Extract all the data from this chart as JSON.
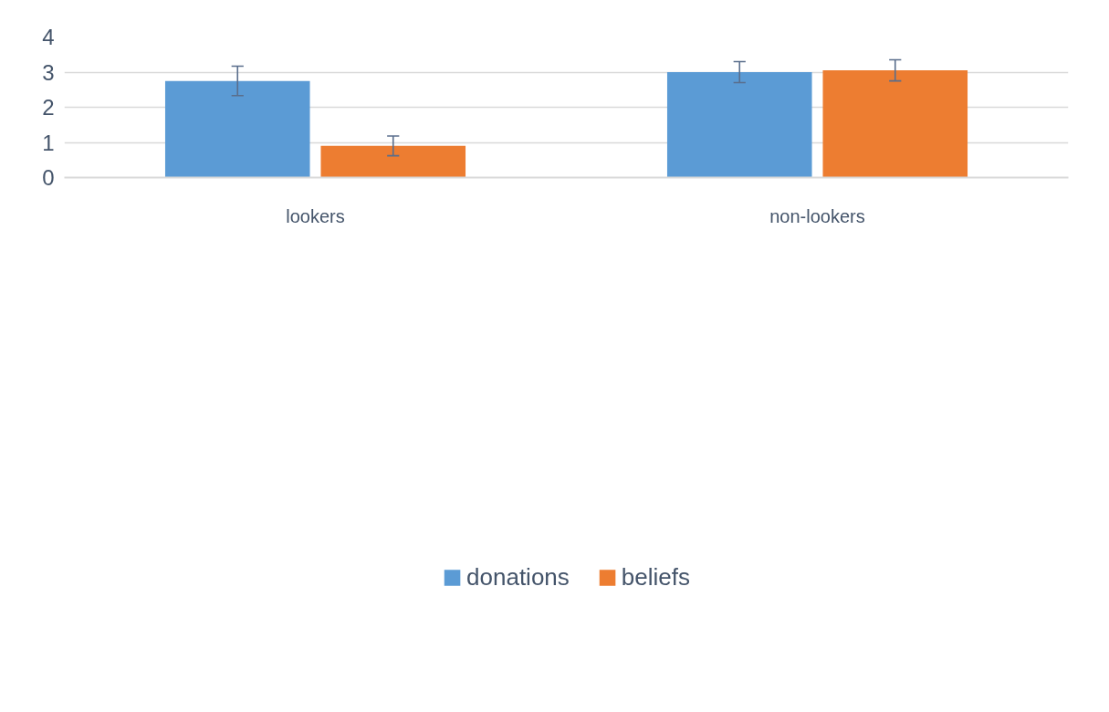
{
  "chart_data": {
    "type": "bar",
    "categories": [
      "lookers",
      "non-lookers"
    ],
    "series": [
      {
        "name": "donations",
        "color": "#5b9bd5",
        "values": [
          2.75,
          3.0
        ],
        "errors": [
          0.42,
          0.3
        ]
      },
      {
        "name": "beliefs",
        "color": "#ed7d31",
        "values": [
          0.9,
          3.05
        ],
        "errors": [
          0.28,
          0.3
        ]
      }
    ],
    "ylim": [
      0,
      4
    ],
    "yticks": [
      0,
      1,
      2,
      3,
      4
    ],
    "grid": "y",
    "legend": "bottom"
  }
}
